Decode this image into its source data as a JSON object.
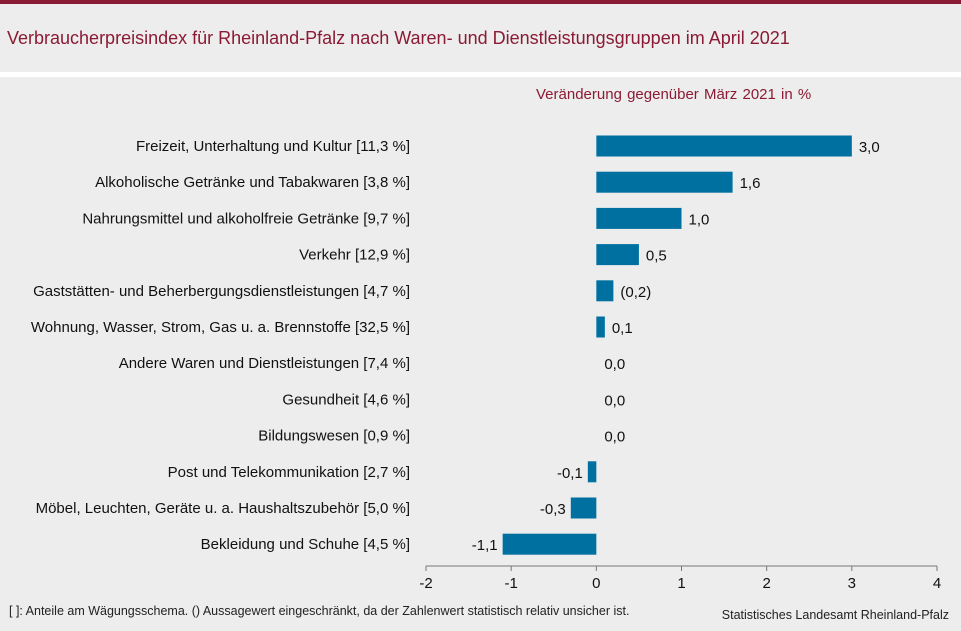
{
  "title": "Verbraucherpreisindex für Rheinland-Pfalz nach Waren- und Dienstleistungsgruppen im April 2021",
  "footnote": "[ ]: Anteile am Wägungsschema. () Aussagewert eingeschränkt, da der Zahlenwert  statistisch relativ unsicher ist.",
  "source": "Statistisches Landesamt Rheinland-Pfalz",
  "colors": {
    "bar": "#0070a0",
    "title": "#8b1a34"
  },
  "chart_data": {
    "type": "bar",
    "orientation": "horizontal",
    "subtitle": "Veränderung  gegenüber  März 2021 in %",
    "categories": [
      "Freizeit, Unterhaltung und Kultur [11,3 %]",
      "Alkoholische Getränke und Tabakwaren [3,8 %]",
      "Nahrungsmittel und alkoholfreie Getränke [9,7 %]",
      "Verkehr [12,9 %]",
      "Gaststätten- und Beherbergungsdienstleistungen [4,7 %]",
      "Wohnung, Wasser, Strom, Gas u. a. Brennstoffe [32,5 %]",
      "Andere Waren und Dienstleistungen [7,4 %]",
      "Gesundheit [4,6 %]",
      "Bildungswesen [0,9 %]",
      "Post und Telekommunikation [2,7 %]",
      "Möbel, Leuchten, Geräte u. a. Haushaltszubehör [5,0 %]",
      "Bekleidung und Schuhe [4,5 %]"
    ],
    "values": [
      3.0,
      1.6,
      1.0,
      0.5,
      0.2,
      0.1,
      0.0,
      0.0,
      0.0,
      -0.1,
      -0.3,
      -1.1
    ],
    "value_labels": [
      "3,0",
      "1,6",
      "1,0",
      "0,5",
      "(0,2)",
      "0,1",
      "0,0",
      "0,0",
      "0,0",
      "-0,1",
      "-0,3",
      "-1,1"
    ],
    "xlim": [
      -2,
      4
    ],
    "xticks": [
      -2,
      -1,
      0,
      1,
      2,
      3,
      4
    ],
    "xtick_labels": [
      "-2",
      "-1",
      "0",
      "1",
      "2",
      "3",
      "4"
    ],
    "grid": false,
    "legend": "none"
  }
}
